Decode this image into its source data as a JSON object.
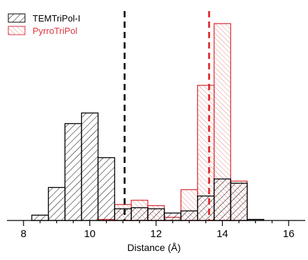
{
  "chart_data": {
    "type": "bar",
    "subtype": "overlapping-histogram",
    "title": "",
    "xlabel": "Distance (Å)",
    "ylabel": "",
    "xlim": [
      7.5,
      16.5
    ],
    "ylim": [
      0,
      100
    ],
    "xticks": [
      "8",
      "10",
      "12",
      "14",
      "16"
    ],
    "x_tick_values": [
      8,
      10,
      12,
      14,
      16
    ],
    "bin_width": 0.5,
    "grid": false,
    "legend_position": "top-left",
    "series": [
      {
        "name": "TEMTriPol-I",
        "color": "#000000",
        "fill": "hatched",
        "bin_starts": [
          8.25,
          8.75,
          9.25,
          9.75,
          10.25,
          10.75,
          11.25,
          11.75,
          12.25,
          12.75,
          13.25,
          13.75,
          14.25,
          14.75
        ],
        "values": [
          2.5,
          15.5,
          45.5,
          50.5,
          29.5,
          5.5,
          6,
          5.5,
          3.5,
          4.5,
          11.5,
          19.5,
          17.5,
          0.5
        ]
      },
      {
        "name": "PyrroTriPol",
        "color": "#d9363e",
        "fill": "hatched",
        "bin_starts": [
          10.25,
          10.75,
          11.25,
          11.75,
          12.25,
          12.75,
          13.25,
          13.75,
          14.25
        ],
        "values": [
          0.5,
          7.5,
          9.5,
          7.0,
          1.5,
          14.5,
          63.5,
          92.5,
          18.5
        ]
      }
    ],
    "reference_lines": [
      {
        "series": "TEMTriPol-I",
        "x": 11.05,
        "color": "#000000",
        "style": "dashed"
      },
      {
        "series": "PyrroTriPol",
        "x": 13.6,
        "color": "#e02020",
        "style": "dashed"
      }
    ]
  }
}
